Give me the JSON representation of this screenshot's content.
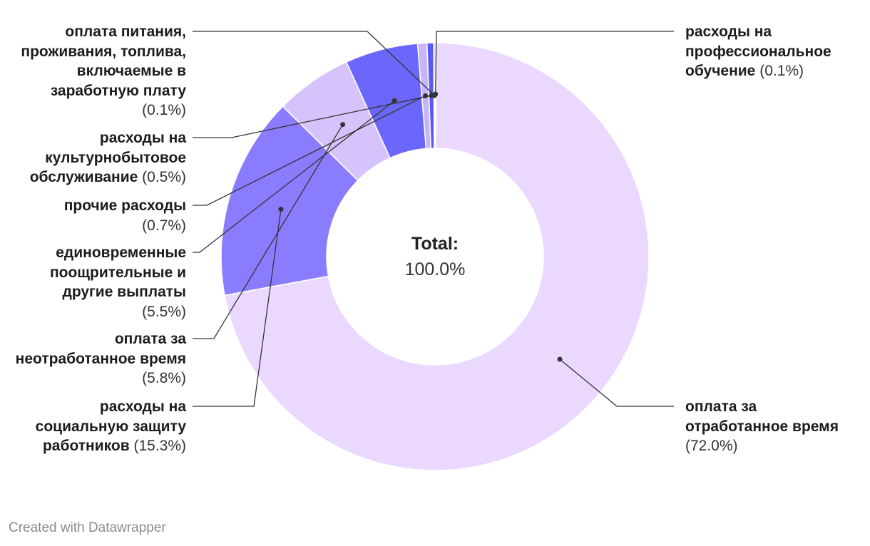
{
  "chart_data": {
    "type": "pie",
    "variant": "donut",
    "title": "",
    "slices": [
      {
        "label": "расходы на профессиональное обучение",
        "percent_label": "(0.1%)",
        "value": 0.1,
        "color": "#3b3dd6"
      },
      {
        "label": "оплата за отработанное время",
        "percent_label": "(72.0%)",
        "value": 72.0,
        "color": "#ead8ff"
      },
      {
        "label": "расходы на социальную защиту работников",
        "percent_label": "(15.3%)",
        "value": 15.3,
        "color": "#8a7cff"
      },
      {
        "label": "оплата за неотработанное время",
        "percent_label": "(5.8%)",
        "value": 5.8,
        "color": "#d7c3fb"
      },
      {
        "label": "единовременные поощрительные и другие выплаты",
        "percent_label": "(5.5%)",
        "value": 5.5,
        "color": "#6b67fb"
      },
      {
        "label": "прочие расходы",
        "percent_label": "(0.7%)",
        "value": 0.7,
        "color": "#c8b5f6"
      },
      {
        "label": "расходы на культурнобытовое обслуживание",
        "percent_label": "(0.5%)",
        "value": 0.5,
        "color": "#5a59f0"
      },
      {
        "label": "оплата питания, проживания, топлива, включаемые в заработную плату",
        "percent_label": "(0.1%)",
        "value": 0.1,
        "color": "#9a8cff"
      }
    ],
    "center_label": "Total:",
    "center_value": "100.0%"
  },
  "labels": {
    "prof_obuch": {
      "name": "расходы на профессиональное обучение",
      "pct": "(0.1%)"
    },
    "otrab": {
      "name": "оплата за отработанное время",
      "pct": "(72.0%)"
    },
    "social": {
      "name": "расходы на социальную защиту работников",
      "pct": "(15.3%)"
    },
    "neotrab": {
      "name": "оплата за неотработанное время",
      "pct": "(5.8%)"
    },
    "edinovr": {
      "name": "единовременные поощрительные и другие выплаты",
      "pct": "(5.5%)"
    },
    "prochie": {
      "name": "прочие расходы",
      "pct": "(0.7%)"
    },
    "kultur": {
      "name": "расходы на культурнобытовое обслуживание",
      "pct": "(0.5%)"
    },
    "pitanie": {
      "name": "оплата питания, проживания, топлива, включаемые в заработную плату",
      "pct": "(0.1%)"
    }
  },
  "credit": "Created with Datawrapper"
}
